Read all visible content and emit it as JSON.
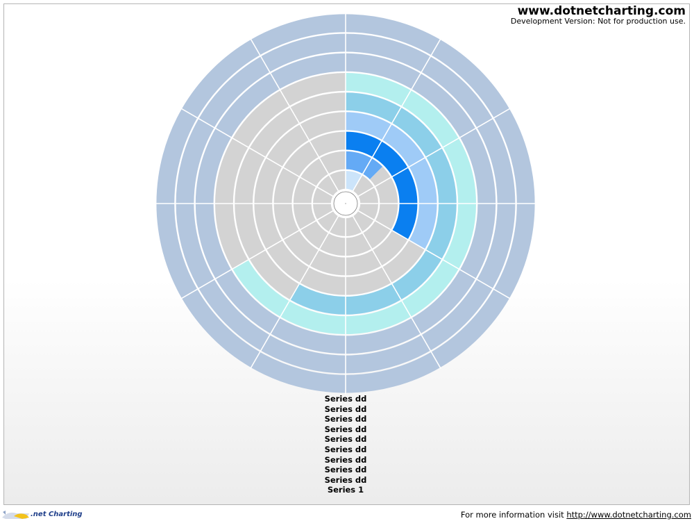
{
  "header": {
    "brand_url": "www.dotnetcharting.com",
    "dev_note": "Development Version: Not for production use."
  },
  "footer": {
    "logo_text": ".net Charting",
    "info_prefix": "For more information visit ",
    "info_link": "http://www.dotnetcharting.com"
  },
  "chart_data": {
    "type": "radial-stacked-rings",
    "sectors": 12,
    "ring_labels_shown": false,
    "series": [
      {
        "name": "Series dd",
        "ring": 1,
        "filled_sectors": 1,
        "color": "#cce4fa"
      },
      {
        "name": "Series dd",
        "ring": 2,
        "filled_sectors": 1.5,
        "color": "#64aaf5"
      },
      {
        "name": "Series dd",
        "ring": 3,
        "filled_sectors": 4,
        "color": "#0a7ff0"
      },
      {
        "name": "Series dd",
        "ring": 4,
        "filled_sectors": 4,
        "color": "#9fcbf7"
      },
      {
        "name": "Series dd",
        "ring": 5,
        "filled_sectors": 7,
        "color": "#8ccfe9"
      },
      {
        "name": "Series dd",
        "ring": 6,
        "filled_sectors": 8,
        "color": "#b3efee"
      },
      {
        "name": "Series dd",
        "ring": 7,
        "filled_sectors": 12,
        "color": "#b3c6de"
      },
      {
        "name": "Series dd",
        "ring": 8,
        "filled_sectors": 12,
        "color": "#b3c6de"
      },
      {
        "name": "Series dd",
        "ring": 9,
        "filled_sectors": 12,
        "color": "#b3c6de"
      }
    ],
    "legend": [
      "Series dd",
      "Series dd",
      "Series dd",
      "Series dd",
      "Series dd",
      "Series dd",
      "Series dd",
      "Series dd",
      "Series dd",
      "Series 1"
    ],
    "empty_color": "#d3d3d3",
    "separator_color": "#ffffff"
  }
}
